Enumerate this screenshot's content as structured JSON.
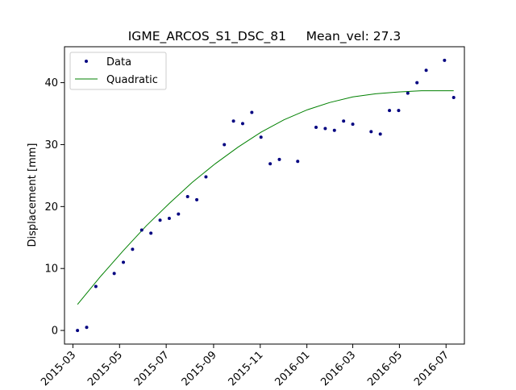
{
  "chart_data": {
    "type": "scatter",
    "title": "IGME_ARCOS_S1_DSC_81     Mean_vel: 27.3",
    "xlabel": "",
    "ylabel": "Displacement [mm]",
    "x_axis_type": "date",
    "xlim": [
      "2015-02-18",
      "2016-07-25"
    ],
    "ylim": [
      -2.2,
      45.8
    ],
    "x_ticks": [
      "2015-03-01",
      "2015-05-01",
      "2015-07-01",
      "2015-09-01",
      "2015-11-01",
      "2016-01-01",
      "2016-03-01",
      "2016-05-01",
      "2016-07-01"
    ],
    "x_tick_labels": [
      "2015-03",
      "2015-05",
      "2015-07",
      "2015-09",
      "2015-11",
      "2016-01",
      "2016-03",
      "2016-05",
      "2016-07"
    ],
    "y_ticks": [
      0,
      10,
      20,
      30,
      40
    ],
    "y_tick_labels": [
      "0",
      "10",
      "20",
      "30",
      "40"
    ],
    "grid": false,
    "legend_position": "top-left",
    "series": [
      {
        "name": "Data",
        "kind": "points",
        "color": "#000080",
        "x": [
          "2015-03-07",
          "2015-03-19",
          "2015-03-31",
          "2015-04-24",
          "2015-05-06",
          "2015-05-18",
          "2015-05-30",
          "2015-06-11",
          "2015-06-23",
          "2015-07-05",
          "2015-07-17",
          "2015-07-29",
          "2015-08-10",
          "2015-08-22",
          "2015-09-15",
          "2015-09-27",
          "2015-10-09",
          "2015-10-21",
          "2015-11-02",
          "2015-11-14",
          "2015-11-26",
          "2015-12-20",
          "2016-01-13",
          "2016-01-25",
          "2016-02-06",
          "2016-02-18",
          "2016-03-01",
          "2016-03-25",
          "2016-04-06",
          "2016-04-18",
          "2016-04-30",
          "2016-05-12",
          "2016-05-24",
          "2016-06-05",
          "2016-06-29",
          "2016-07-11"
        ],
        "y": [
          0.0,
          0.5,
          7.1,
          9.2,
          11.0,
          13.1,
          16.2,
          15.7,
          17.8,
          18.1,
          18.8,
          21.6,
          21.1,
          24.8,
          30.0,
          33.8,
          33.4,
          35.2,
          31.2,
          26.9,
          27.6,
          27.3,
          32.8,
          32.6,
          32.3,
          33.8,
          33.3,
          32.1,
          31.7,
          35.5,
          35.5,
          38.3,
          40.0,
          42.0,
          43.6,
          37.6
        ]
      },
      {
        "name": "Quadratic",
        "kind": "line",
        "color": "#008000",
        "x": [
          "2015-03-07",
          "2015-04-06",
          "2015-05-06",
          "2015-06-05",
          "2015-07-05",
          "2015-08-04",
          "2015-09-03",
          "2015-10-03",
          "2015-11-02",
          "2015-12-02",
          "2016-01-01",
          "2016-01-31",
          "2016-03-01",
          "2016-03-31",
          "2016-04-30",
          "2016-05-30",
          "2016-06-29",
          "2016-07-11"
        ],
        "y": [
          4.2,
          8.7,
          12.9,
          16.9,
          20.5,
          23.9,
          26.9,
          29.6,
          32.0,
          34.0,
          35.6,
          36.8,
          37.7,
          38.2,
          38.5,
          38.7,
          38.7,
          38.7
        ]
      }
    ]
  }
}
